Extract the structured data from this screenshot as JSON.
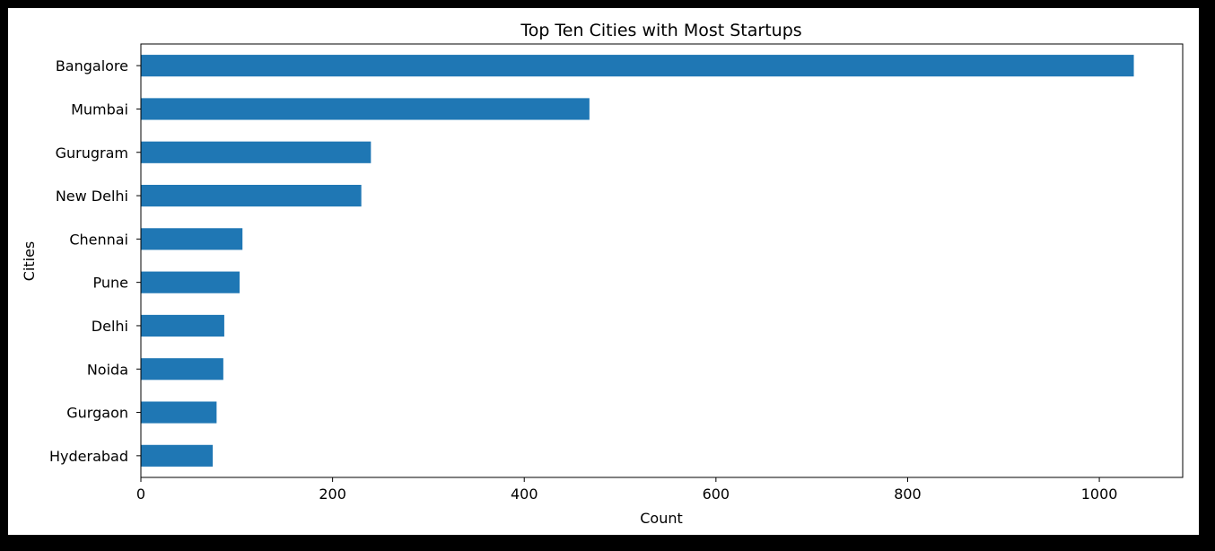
{
  "chart_data": {
    "type": "bar",
    "orientation": "horizontal",
    "title": "Top Ten Cities with Most Startups",
    "xlabel": "Count",
    "ylabel": "Cities",
    "categories": [
      "Bangalore",
      "Mumbai",
      "Gurugram",
      "New Delhi",
      "Chennai",
      "Pune",
      "Delhi",
      "Noida",
      "Gurgaon",
      "Hyderabad"
    ],
    "values": [
      1036,
      468,
      240,
      230,
      106,
      103,
      87,
      86,
      79,
      75
    ],
    "xlim": [
      0,
      1087
    ],
    "xticks": [
      0,
      200,
      400,
      600,
      800,
      1000
    ],
    "xtick_labels": [
      "0",
      "200",
      "400",
      "600",
      "800",
      "1000"
    ],
    "grid": false,
    "legend": "none",
    "bar_color": "#1f77b4",
    "frame_color": "#000000"
  }
}
